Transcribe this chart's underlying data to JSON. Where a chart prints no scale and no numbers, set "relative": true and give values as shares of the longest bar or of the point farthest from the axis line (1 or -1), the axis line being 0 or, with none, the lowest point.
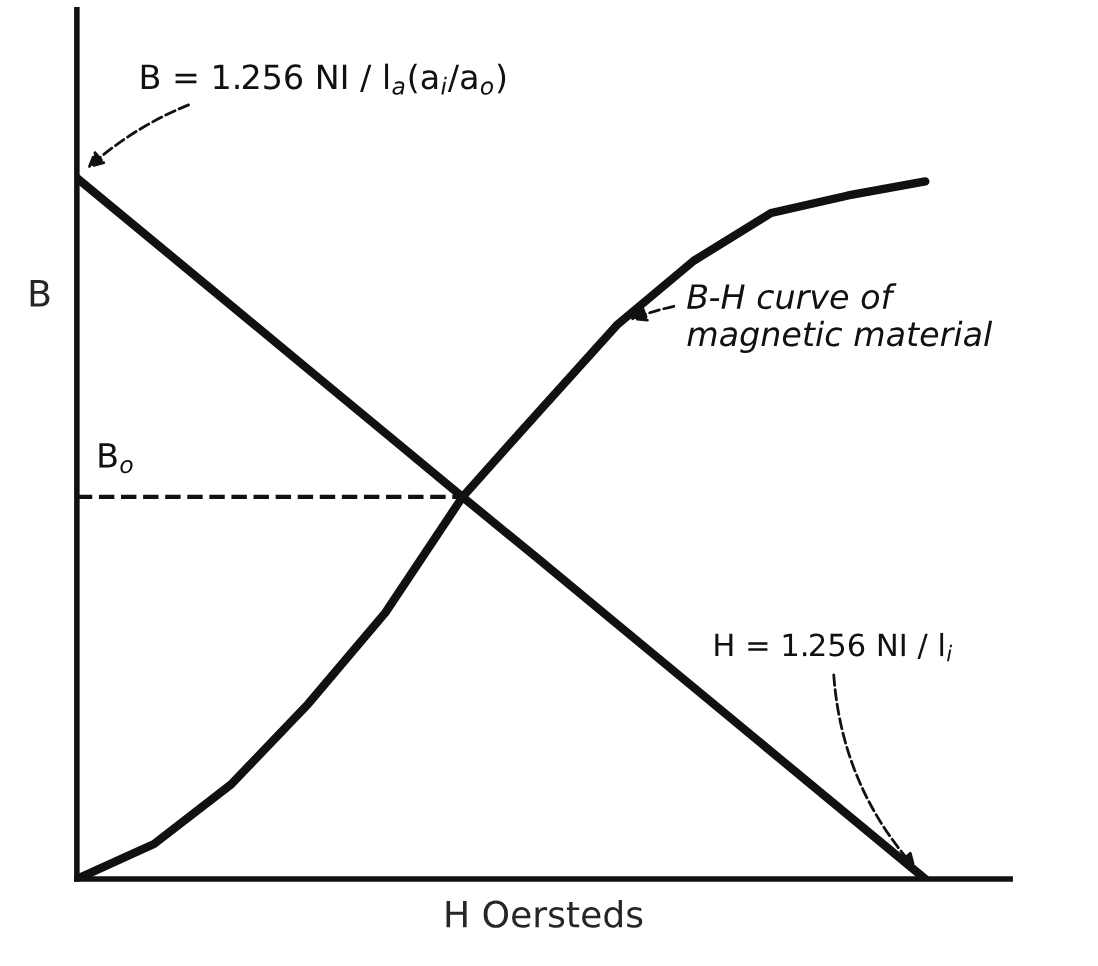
{
  "chart_data": {
    "type": "line",
    "relative": true,
    "xlabel": "H Oersteds",
    "ylabel": "B",
    "categories": [
      null,
      null,
      null,
      null,
      null,
      null,
      null,
      null,
      null,
      null,
      null,
      null
    ],
    "series": [
      {
        "color": "#111111",
        "values": [
          1.0,
          0.909,
          0.818,
          0.727,
          0.636,
          0.545,
          0.455,
          0.364,
          0.273,
          0.182,
          0.091,
          0
        ]
      },
      {
        "color": "#111111",
        "values": [
          0,
          0.05,
          0.135,
          0.25,
          0.38,
          0.545,
          0.668,
          0.79,
          0.882,
          0.95,
          0.975,
          0.995
        ]
      },
      {
        "color": "#111111",
        "line_style": "dashed",
        "values": [
          0.545,
          0.545,
          0.545,
          0.545,
          0.545,
          0.545,
          null,
          null,
          null,
          null,
          null,
          null
        ]
      }
    ],
    "annotations": [
      "B = 1.256 NI / l$_{a}$(a$_{i}$/a$_{o}$)",
      "B-H curve of\nmagnetic material",
      "B$_{o}$",
      "H = 1.256 NI / l$_{i}$"
    ]
  }
}
